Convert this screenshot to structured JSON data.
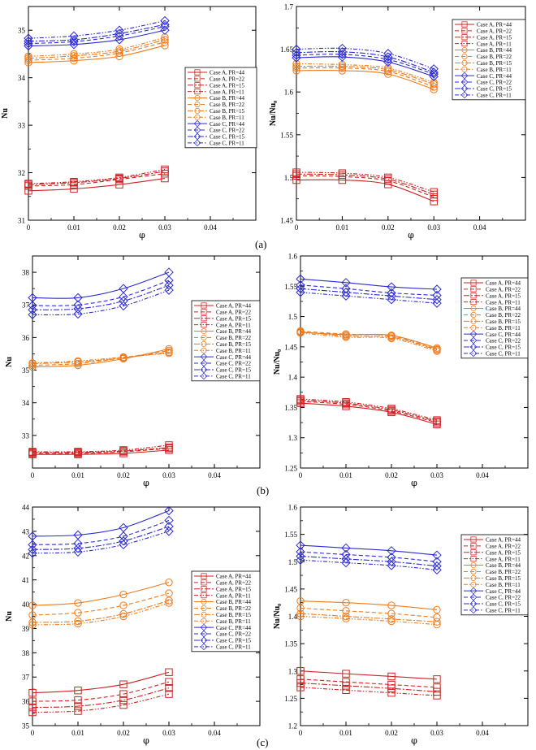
{
  "figure": {
    "row_labels": [
      "(a)",
      "(b)",
      "(c)"
    ]
  },
  "legend_entries": [
    "Case A, PR=44",
    "Case A, PR=22",
    "Case A, PR=15",
    "Case A, PR=11",
    "Case B, PR=44",
    "Case B, PR=22",
    "Case B, PR=15",
    "Case B, PR=11",
    "Case C, PR=44",
    "Case C, PR=22",
    "Case C, PR=15",
    "Case C, PR=11"
  ],
  "colors": {
    "case_a": "#cc2222",
    "case_b": "#f07a1a",
    "case_c": "#2b2bd6"
  },
  "chart_data": [
    {
      "id": "a-left",
      "type": "line",
      "xlabel": "φ",
      "ylabel": "Nu",
      "xlim": [
        0,
        0.05
      ],
      "ylim": [
        31,
        35.5
      ],
      "xticks": [
        "0",
        "0.01",
        "0.02",
        "0.03",
        "0.04"
      ],
      "yticks": [
        "31",
        "32",
        "33",
        "34",
        "35"
      ],
      "legend": "right-middle",
      "x": [
        0,
        0.01,
        0.02,
        0.03
      ],
      "series": [
        {
          "name": "Case A, PR=44",
          "values": [
            31.62,
            31.66,
            31.75,
            31.88
          ]
        },
        {
          "name": "Case A, PR=22",
          "values": [
            31.72,
            31.75,
            31.86,
            31.98
          ]
        },
        {
          "name": "Case A, PR=15",
          "values": [
            31.75,
            31.79,
            31.88,
            32.03
          ]
        },
        {
          "name": "Case A, PR=11",
          "values": [
            31.77,
            31.81,
            31.9,
            32.07
          ]
        },
        {
          "name": "Case B, PR=44",
          "values": [
            34.32,
            34.36,
            34.45,
            34.68
          ]
        },
        {
          "name": "Case B, PR=22",
          "values": [
            34.37,
            34.41,
            34.52,
            34.75
          ]
        },
        {
          "name": "Case B, PR=15",
          "values": [
            34.41,
            34.46,
            34.56,
            34.8
          ]
        },
        {
          "name": "Case B, PR=11",
          "values": [
            34.45,
            34.5,
            34.6,
            34.85
          ]
        },
        {
          "name": "Case C, PR=44",
          "values": [
            34.67,
            34.7,
            34.8,
            35.0
          ]
        },
        {
          "name": "Case C, PR=22",
          "values": [
            34.72,
            34.76,
            34.88,
            35.08
          ]
        },
        {
          "name": "Case C, PR=15",
          "values": [
            34.77,
            34.8,
            34.93,
            35.12
          ]
        },
        {
          "name": "Case C, PR=11",
          "values": [
            34.83,
            34.88,
            35.0,
            35.2
          ]
        }
      ]
    },
    {
      "id": "a-right",
      "type": "line",
      "xlabel": "φ",
      "ylabel": "Nu/Nu₀",
      "xlim": [
        0,
        0.05
      ],
      "ylim": [
        1.45,
        1.7
      ],
      "xticks": [
        "0",
        "0.01",
        "0.02",
        "0.03",
        "0.04"
      ],
      "yticks": [
        "1.45",
        "1.5",
        "1.55",
        "1.6",
        "1.65",
        "1.7"
      ],
      "legend": "top-right",
      "x": [
        0,
        0.01,
        0.02,
        0.03
      ],
      "series": [
        {
          "name": "Case A, PR=44",
          "values": [
            1.497,
            1.497,
            1.492,
            1.472
          ]
        },
        {
          "name": "Case A, PR=22",
          "values": [
            1.502,
            1.501,
            1.496,
            1.477
          ]
        },
        {
          "name": "Case A, PR=15",
          "values": [
            1.504,
            1.503,
            1.498,
            1.48
          ]
        },
        {
          "name": "Case A, PR=11",
          "values": [
            1.506,
            1.505,
            1.5,
            1.483
          ]
        },
        {
          "name": "Case B, PR=44",
          "values": [
            1.625,
            1.625,
            1.621,
            1.603
          ]
        },
        {
          "name": "Case B, PR=22",
          "values": [
            1.628,
            1.628,
            1.624,
            1.606
          ]
        },
        {
          "name": "Case B, PR=15",
          "values": [
            1.63,
            1.63,
            1.626,
            1.609
          ]
        },
        {
          "name": "Case B, PR=11",
          "values": [
            1.633,
            1.632,
            1.628,
            1.611
          ]
        },
        {
          "name": "Case C, PR=44",
          "values": [
            1.64,
            1.641,
            1.635,
            1.618
          ]
        },
        {
          "name": "Case C, PR=22",
          "values": [
            1.643,
            1.644,
            1.638,
            1.621
          ]
        },
        {
          "name": "Case C, PR=15",
          "values": [
            1.646,
            1.647,
            1.641,
            1.623
          ]
        },
        {
          "name": "Case C, PR=11",
          "values": [
            1.65,
            1.651,
            1.645,
            1.627
          ]
        }
      ]
    },
    {
      "id": "b-left",
      "type": "line",
      "xlabel": "φ",
      "ylabel": "Nu",
      "xlim": [
        0,
        0.05
      ],
      "ylim": [
        32,
        38.5
      ],
      "xticks": [
        "0",
        "0.01",
        "0.02",
        "0.03",
        "0.04"
      ],
      "yticks": [
        "33",
        "34",
        "35",
        "36",
        "37",
        "38"
      ],
      "legend": "right-middle",
      "x": [
        0,
        0.01,
        0.02,
        0.03
      ],
      "series": [
        {
          "name": "Case A, PR=44",
          "values": [
            32.42,
            32.42,
            32.45,
            32.55
          ]
        },
        {
          "name": "Case A, PR=22",
          "values": [
            32.45,
            32.45,
            32.5,
            32.6
          ]
        },
        {
          "name": "Case A, PR=15",
          "values": [
            32.48,
            32.48,
            32.52,
            32.63
          ]
        },
        {
          "name": "Case A, PR=11",
          "values": [
            32.5,
            32.5,
            32.55,
            32.7
          ]
        },
        {
          "name": "Case B, PR=44",
          "values": [
            35.1,
            35.15,
            35.35,
            35.65
          ]
        },
        {
          "name": "Case B, PR=22",
          "values": [
            35.15,
            35.2,
            35.38,
            35.6
          ]
        },
        {
          "name": "Case B, PR=15",
          "values": [
            35.2,
            35.25,
            35.38,
            35.55
          ]
        },
        {
          "name": "Case B, PR=11",
          "values": [
            35.22,
            35.28,
            35.4,
            35.52
          ]
        },
        {
          "name": "Case C, PR=44",
          "values": [
            37.22,
            37.22,
            37.5,
            38.0
          ]
        },
        {
          "name": "Case C, PR=22",
          "values": [
            36.98,
            37.0,
            37.25,
            37.75
          ]
        },
        {
          "name": "Case C, PR=15",
          "values": [
            36.85,
            36.88,
            37.12,
            37.6
          ]
        },
        {
          "name": "Case C, PR=11",
          "values": [
            36.7,
            36.72,
            36.97,
            37.45
          ]
        }
      ]
    },
    {
      "id": "b-right",
      "type": "line",
      "xlabel": "φ",
      "ylabel": "Nu/Nu₀",
      "xlim": [
        0,
        0.05
      ],
      "ylim": [
        1.25,
        1.6
      ],
      "xticks": [
        "0",
        "0.01",
        "0.02",
        "0.03",
        "0.04"
      ],
      "yticks": [
        "1.25",
        "1.3",
        "1.35",
        "1.4",
        "1.45",
        "1.5",
        "1.55",
        "1.6"
      ],
      "legend": "right-middle",
      "x": [
        0,
        0.01,
        0.02,
        0.03
      ],
      "series": [
        {
          "name": "Case A, PR=44",
          "values": [
            1.357,
            1.352,
            1.342,
            1.322
          ]
        },
        {
          "name": "Case A, PR=22",
          "values": [
            1.36,
            1.355,
            1.344,
            1.325
          ]
        },
        {
          "name": "Case A, PR=15",
          "values": [
            1.362,
            1.357,
            1.346,
            1.327
          ]
        },
        {
          "name": "Case A, PR=11",
          "values": [
            1.364,
            1.359,
            1.348,
            1.329
          ]
        },
        {
          "name": "Case B, PR=44",
          "values": [
            1.474,
            1.47,
            1.469,
            1.448
          ]
        },
        {
          "name": "Case B, PR=22",
          "values": [
            1.476,
            1.471,
            1.468,
            1.446
          ]
        },
        {
          "name": "Case B, PR=15",
          "values": [
            1.475,
            1.468,
            1.466,
            1.445
          ]
        },
        {
          "name": "Case B, PR=11",
          "values": [
            1.473,
            1.466,
            1.464,
            1.443
          ]
        },
        {
          "name": "Case C, PR=44",
          "values": [
            1.562,
            1.556,
            1.549,
            1.545
          ]
        },
        {
          "name": "Case C, PR=22",
          "values": [
            1.552,
            1.546,
            1.539,
            1.535
          ]
        },
        {
          "name": "Case C, PR=15",
          "values": [
            1.546,
            1.54,
            1.534,
            1.528
          ]
        },
        {
          "name": "Case C, PR=11",
          "values": [
            1.54,
            1.534,
            1.528,
            1.522
          ]
        }
      ]
    },
    {
      "id": "c-left",
      "type": "line",
      "xlabel": "φ",
      "ylabel": "Nu",
      "xlim": [
        0,
        0.05
      ],
      "ylim": [
        35,
        44
      ],
      "xticks": [
        "0",
        "0.01",
        "0.02",
        "0.03",
        "0.04"
      ],
      "yticks": [
        "35",
        "36",
        "37",
        "38",
        "39",
        "40",
        "41",
        "42",
        "43",
        "44"
      ],
      "legend": "right-middle",
      "x": [
        0,
        0.01,
        0.02,
        0.03
      ],
      "series": [
        {
          "name": "Case A, PR=44",
          "values": [
            36.35,
            36.45,
            36.7,
            37.2
          ]
        },
        {
          "name": "Case A, PR=22",
          "values": [
            36.0,
            36.05,
            36.3,
            36.8
          ]
        },
        {
          "name": "Case A, PR=15",
          "values": [
            35.75,
            35.8,
            36.05,
            36.55
          ]
        },
        {
          "name": "Case A, PR=11",
          "values": [
            35.55,
            35.6,
            35.85,
            36.3
          ]
        },
        {
          "name": "Case B, PR=44",
          "values": [
            39.95,
            40.05,
            40.4,
            40.9
          ]
        },
        {
          "name": "Case B, PR=22",
          "values": [
            39.55,
            39.65,
            39.95,
            40.45
          ]
        },
        {
          "name": "Case B, PR=15",
          "values": [
            39.25,
            39.3,
            39.6,
            40.15
          ]
        },
        {
          "name": "Case B, PR=11",
          "values": [
            39.15,
            39.2,
            39.5,
            40.05
          ]
        },
        {
          "name": "Case C, PR=44",
          "values": [
            42.8,
            42.85,
            43.15,
            43.85
          ]
        },
        {
          "name": "Case C, PR=22",
          "values": [
            42.45,
            42.5,
            42.8,
            43.45
          ]
        },
        {
          "name": "Case C, PR=15",
          "values": [
            42.25,
            42.3,
            42.6,
            43.2
          ]
        },
        {
          "name": "Case C, PR=11",
          "values": [
            42.1,
            42.15,
            42.45,
            43.0
          ]
        }
      ]
    },
    {
      "id": "c-right",
      "type": "line",
      "xlabel": "φ",
      "ylabel": "Nu/Nu₀",
      "xlim": [
        0,
        0.05
      ],
      "ylim": [
        1.2,
        1.6
      ],
      "xticks": [
        "0",
        "0.01",
        "0.02",
        "0.03",
        "0.04"
      ],
      "yticks": [
        "1.2",
        "1.25",
        "1.3",
        "1.35",
        "1.4",
        "1.45",
        "1.5",
        "1.55",
        "1.6"
      ],
      "legend": "top-right",
      "x": [
        0,
        0.01,
        0.02,
        0.03
      ],
      "series": [
        {
          "name": "Case A, PR=44",
          "values": [
            1.3,
            1.295,
            1.29,
            1.285
          ]
        },
        {
          "name": "Case A, PR=22",
          "values": [
            1.285,
            1.28,
            1.275,
            1.27
          ]
        },
        {
          "name": "Case A, PR=15",
          "values": [
            1.278,
            1.273,
            1.268,
            1.262
          ]
        },
        {
          "name": "Case A, PR=11",
          "values": [
            1.27,
            1.265,
            1.26,
            1.255
          ]
        },
        {
          "name": "Case B, PR=44",
          "values": [
            1.428,
            1.425,
            1.42,
            1.412
          ]
        },
        {
          "name": "Case B, PR=22",
          "values": [
            1.415,
            1.41,
            1.405,
            1.398
          ]
        },
        {
          "name": "Case B, PR=15",
          "values": [
            1.405,
            1.4,
            1.395,
            1.39
          ]
        },
        {
          "name": "Case B, PR=11",
          "values": [
            1.4,
            1.396,
            1.391,
            1.385
          ]
        },
        {
          "name": "Case C, PR=44",
          "values": [
            1.53,
            1.525,
            1.52,
            1.512
          ]
        },
        {
          "name": "Case C, PR=22",
          "values": [
            1.518,
            1.513,
            1.508,
            1.5
          ]
        },
        {
          "name": "Case C, PR=15",
          "values": [
            1.51,
            1.505,
            1.5,
            1.492
          ]
        },
        {
          "name": "Case C, PR=11",
          "values": [
            1.503,
            1.498,
            1.493,
            1.485
          ]
        }
      ]
    }
  ]
}
